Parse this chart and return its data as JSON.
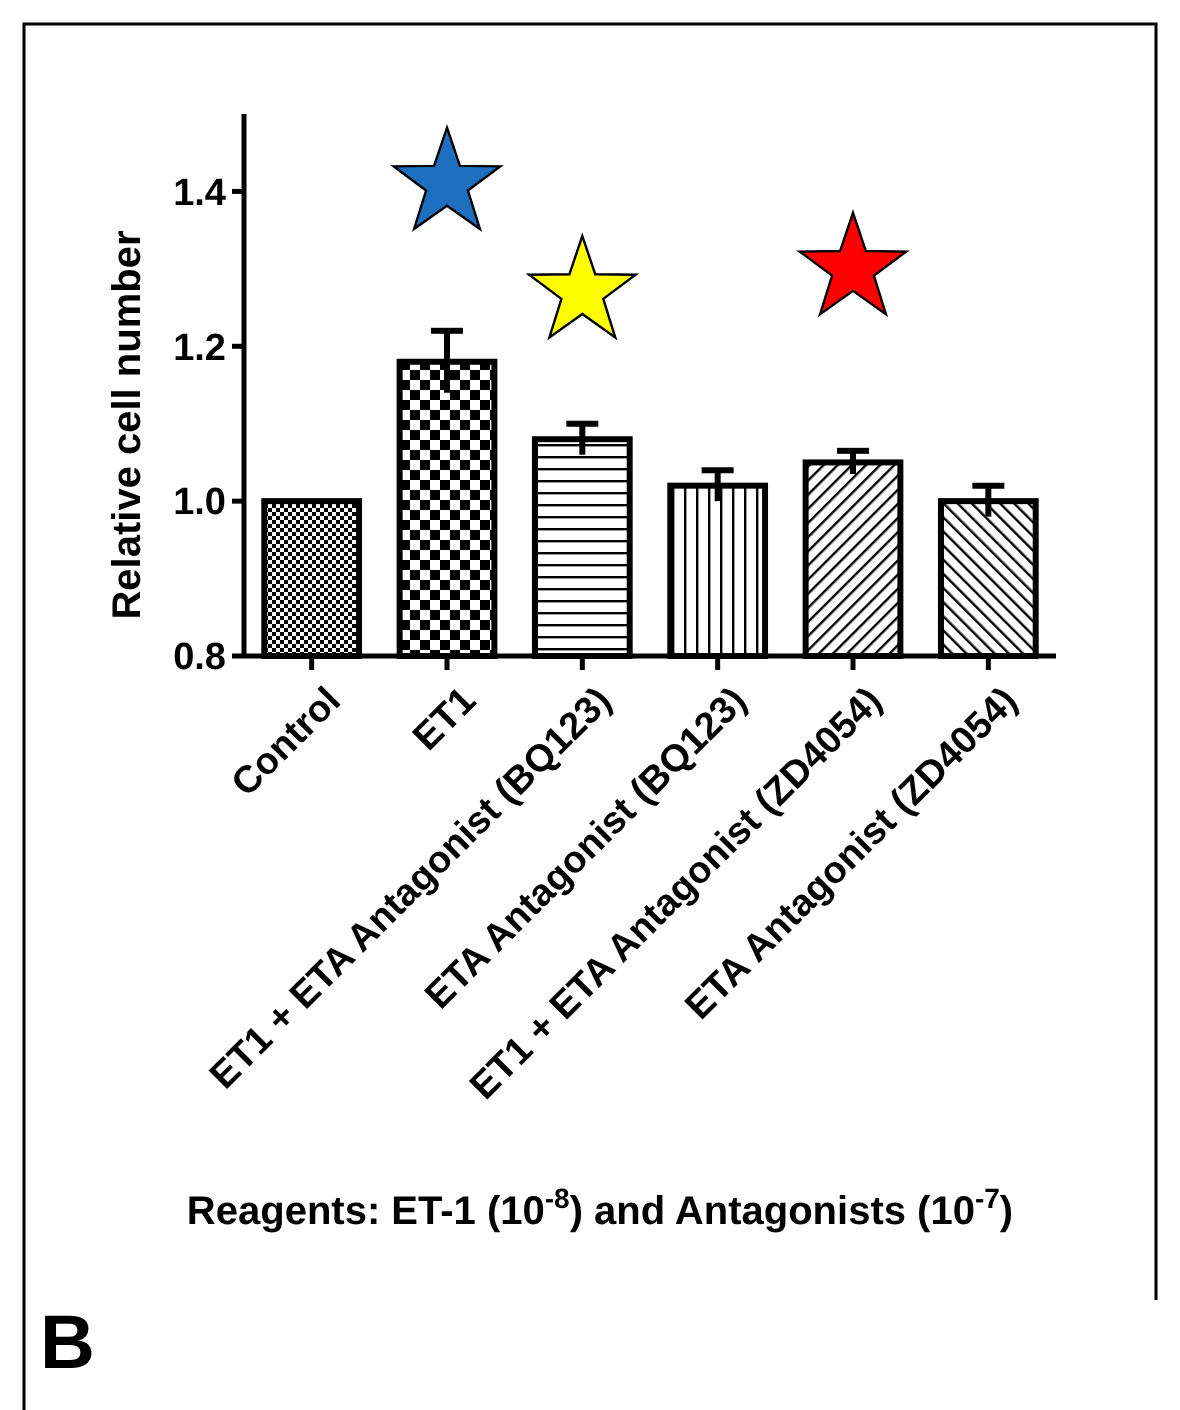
{
  "chart_data": {
    "type": "bar",
    "ylabel": "Relative cell number",
    "xlabel": "Reagents: ET-1 (10$^{-8}$) and Antagonists (10$^{-7}$)",
    "categories": [
      "Control",
      "ET1",
      "ET1 + ETA Antagonist (BQ123)",
      "ETA Antagonist (BQ123)",
      "ET1 + ETA Antagonist (ZD4054)",
      "ETA Antagonist (ZD4054)"
    ],
    "values": [
      1.0,
      1.18,
      1.08,
      1.02,
      1.05,
      1.0
    ],
    "errors": [
      null,
      0.04,
      0.02,
      0.02,
      0.015,
      0.02
    ],
    "color": "#000000",
    "ylim": [
      0.8,
      1.5
    ],
    "yticks": [
      {
        "value": 0.8,
        "label": "0.8"
      },
      {
        "value": 1.0,
        "label": "1.0"
      },
      {
        "value": 1.2,
        "label": "1.2"
      },
      {
        "value": 1.4,
        "label": "1.4"
      }
    ],
    "grid": false,
    "annotations": [
      "B"
    ]
  }
}
